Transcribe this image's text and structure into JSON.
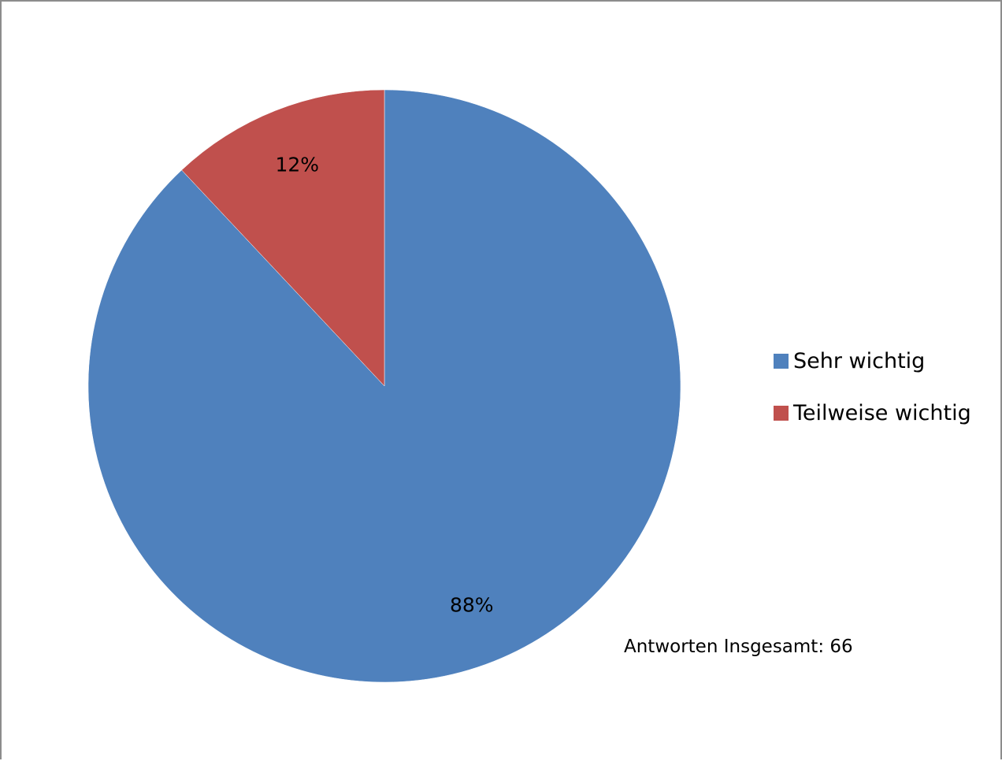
{
  "chart_data": {
    "type": "pie",
    "slices": [
      {
        "label": "Sehr wichtig",
        "value": 88,
        "display": "88%",
        "color": "#4f81bd"
      },
      {
        "label": "Teilweise wichtig",
        "value": 12,
        "display": "12%",
        "color": "#c0504d"
      }
    ],
    "legend_position": "right",
    "annotation": "Antworten Insgesamt: 66"
  }
}
